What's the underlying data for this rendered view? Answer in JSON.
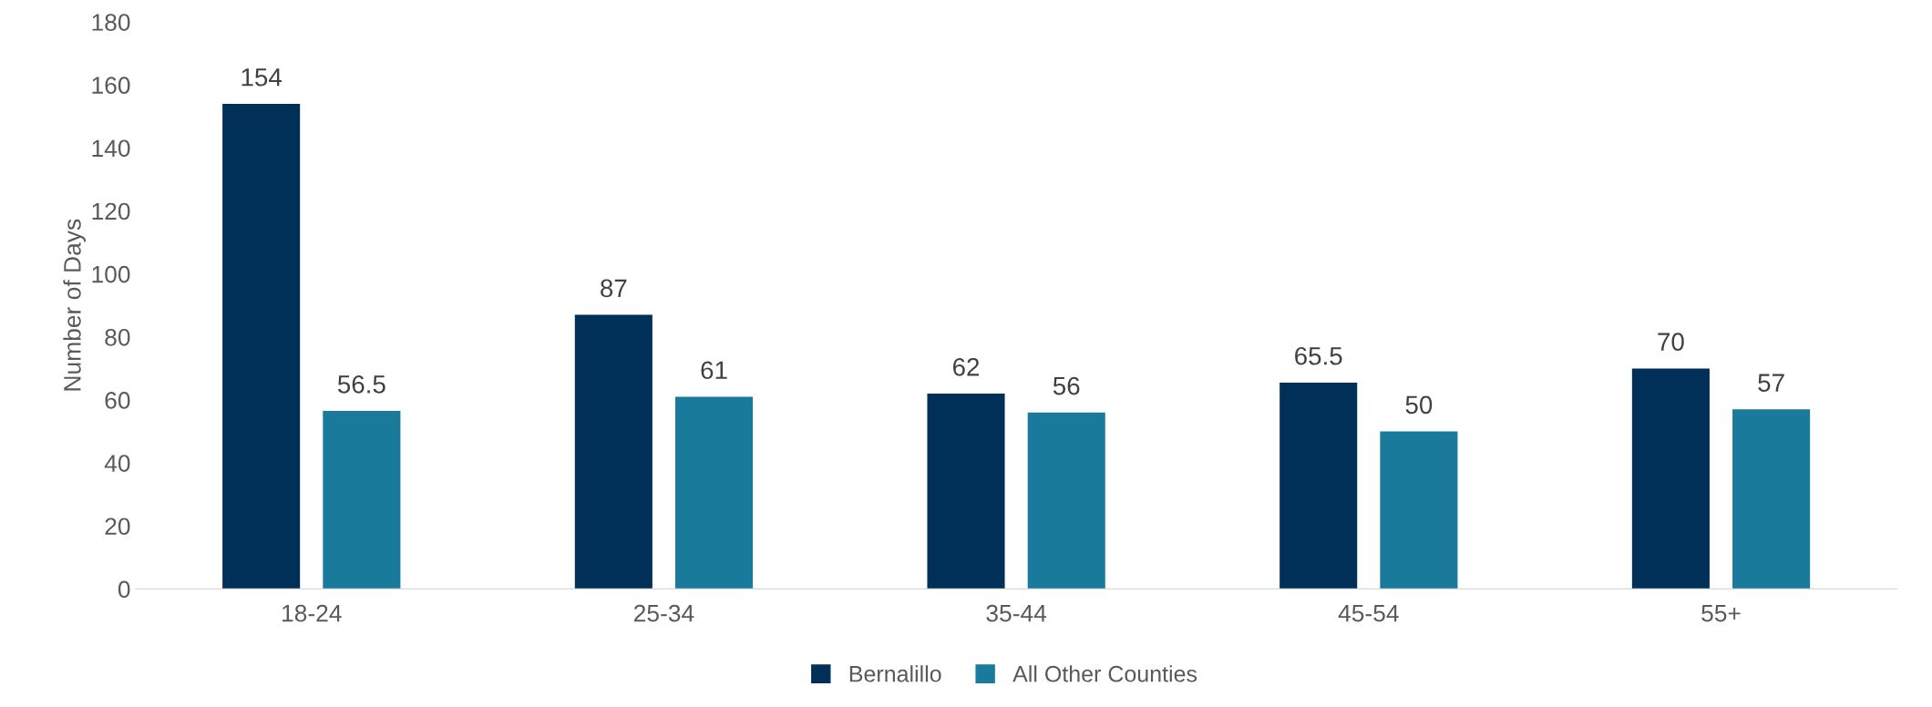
{
  "chart_data": {
    "type": "bar",
    "ylabel": "Number of Days",
    "categories": [
      "18-24",
      "25-34",
      "35-44",
      "45-54",
      "55+"
    ],
    "series": [
      {
        "name": "Bernalillo",
        "color": "#003057",
        "values": [
          154,
          87,
          62,
          65.5,
          70
        ]
      },
      {
        "name": "All Other Counties",
        "color": "#1a7a9c",
        "values": [
          56.5,
          61,
          56,
          50,
          57
        ]
      }
    ],
    "ylim": [
      0,
      180
    ],
    "yticks": [
      0,
      20,
      40,
      60,
      80,
      100,
      120,
      140,
      160,
      180
    ],
    "grid": false,
    "legend": "bottom",
    "data_labels": true
  }
}
